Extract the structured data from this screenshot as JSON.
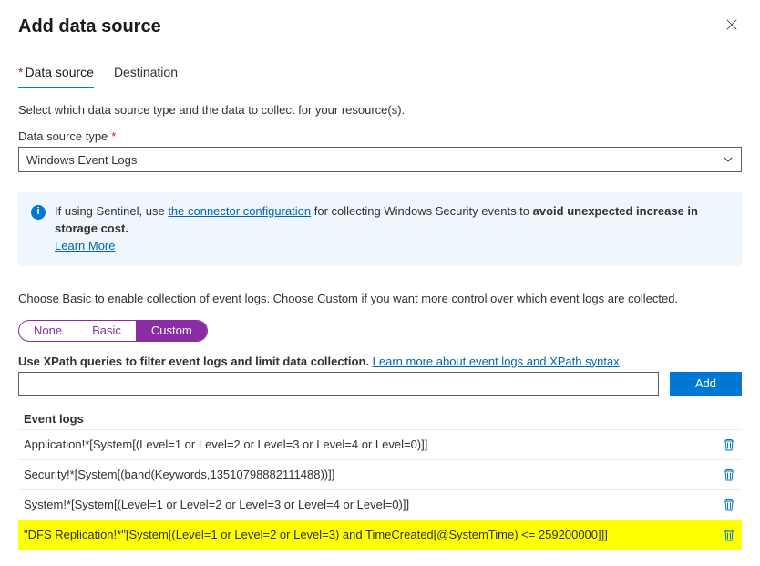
{
  "header": {
    "title": "Add data source"
  },
  "tabs": {
    "items": [
      {
        "label": "Data source",
        "active": true,
        "hasStar": true
      },
      {
        "label": "Destination",
        "active": false,
        "hasStar": false
      }
    ]
  },
  "intro": "Select which data source type and the data to collect for your resource(s).",
  "typeField": {
    "label": "Data source type",
    "value": "Windows Event Logs"
  },
  "banner": {
    "prefix": "If using Sentinel, use ",
    "link1": "the connector configuration",
    "mid": " for collecting Windows Security events to ",
    "bold": "avoid unexpected increase in storage cost.",
    "learnMore": "Learn More"
  },
  "modeDesc": "Choose Basic to enable collection of event logs. Choose Custom if you want more control over which event logs are collected.",
  "segments": {
    "none": "None",
    "basic": "Basic",
    "custom": "Custom"
  },
  "xpath": {
    "labelBold": "Use XPath queries to filter event logs and limit data collection.",
    "labelLink": "Learn more about event logs and XPath syntax",
    "addLabel": "Add"
  },
  "logs": {
    "heading": "Event logs",
    "rows": [
      {
        "text": "Application!*[System[(Level=1 or Level=2 or Level=3 or Level=4 or Level=0)]]",
        "hl": false
      },
      {
        "text": "Security!*[System[(band(Keywords,13510798882111488))]]",
        "hl": false
      },
      {
        "text": "System!*[System[(Level=1 or Level=2 or Level=3 or Level=4 or Level=0)]]",
        "hl": false
      },
      {
        "text": "\"DFS Replication!*\"[System[(Level=1 or Level=2 or Level=3) and TimeCreated[@SystemTime) <= 259200000]]]",
        "hl": true
      }
    ]
  },
  "colors": {
    "accent": "#0078d4",
    "segment": "#8a2da5",
    "highlight": "#ffff00",
    "bannerBg": "#eff6fc"
  }
}
